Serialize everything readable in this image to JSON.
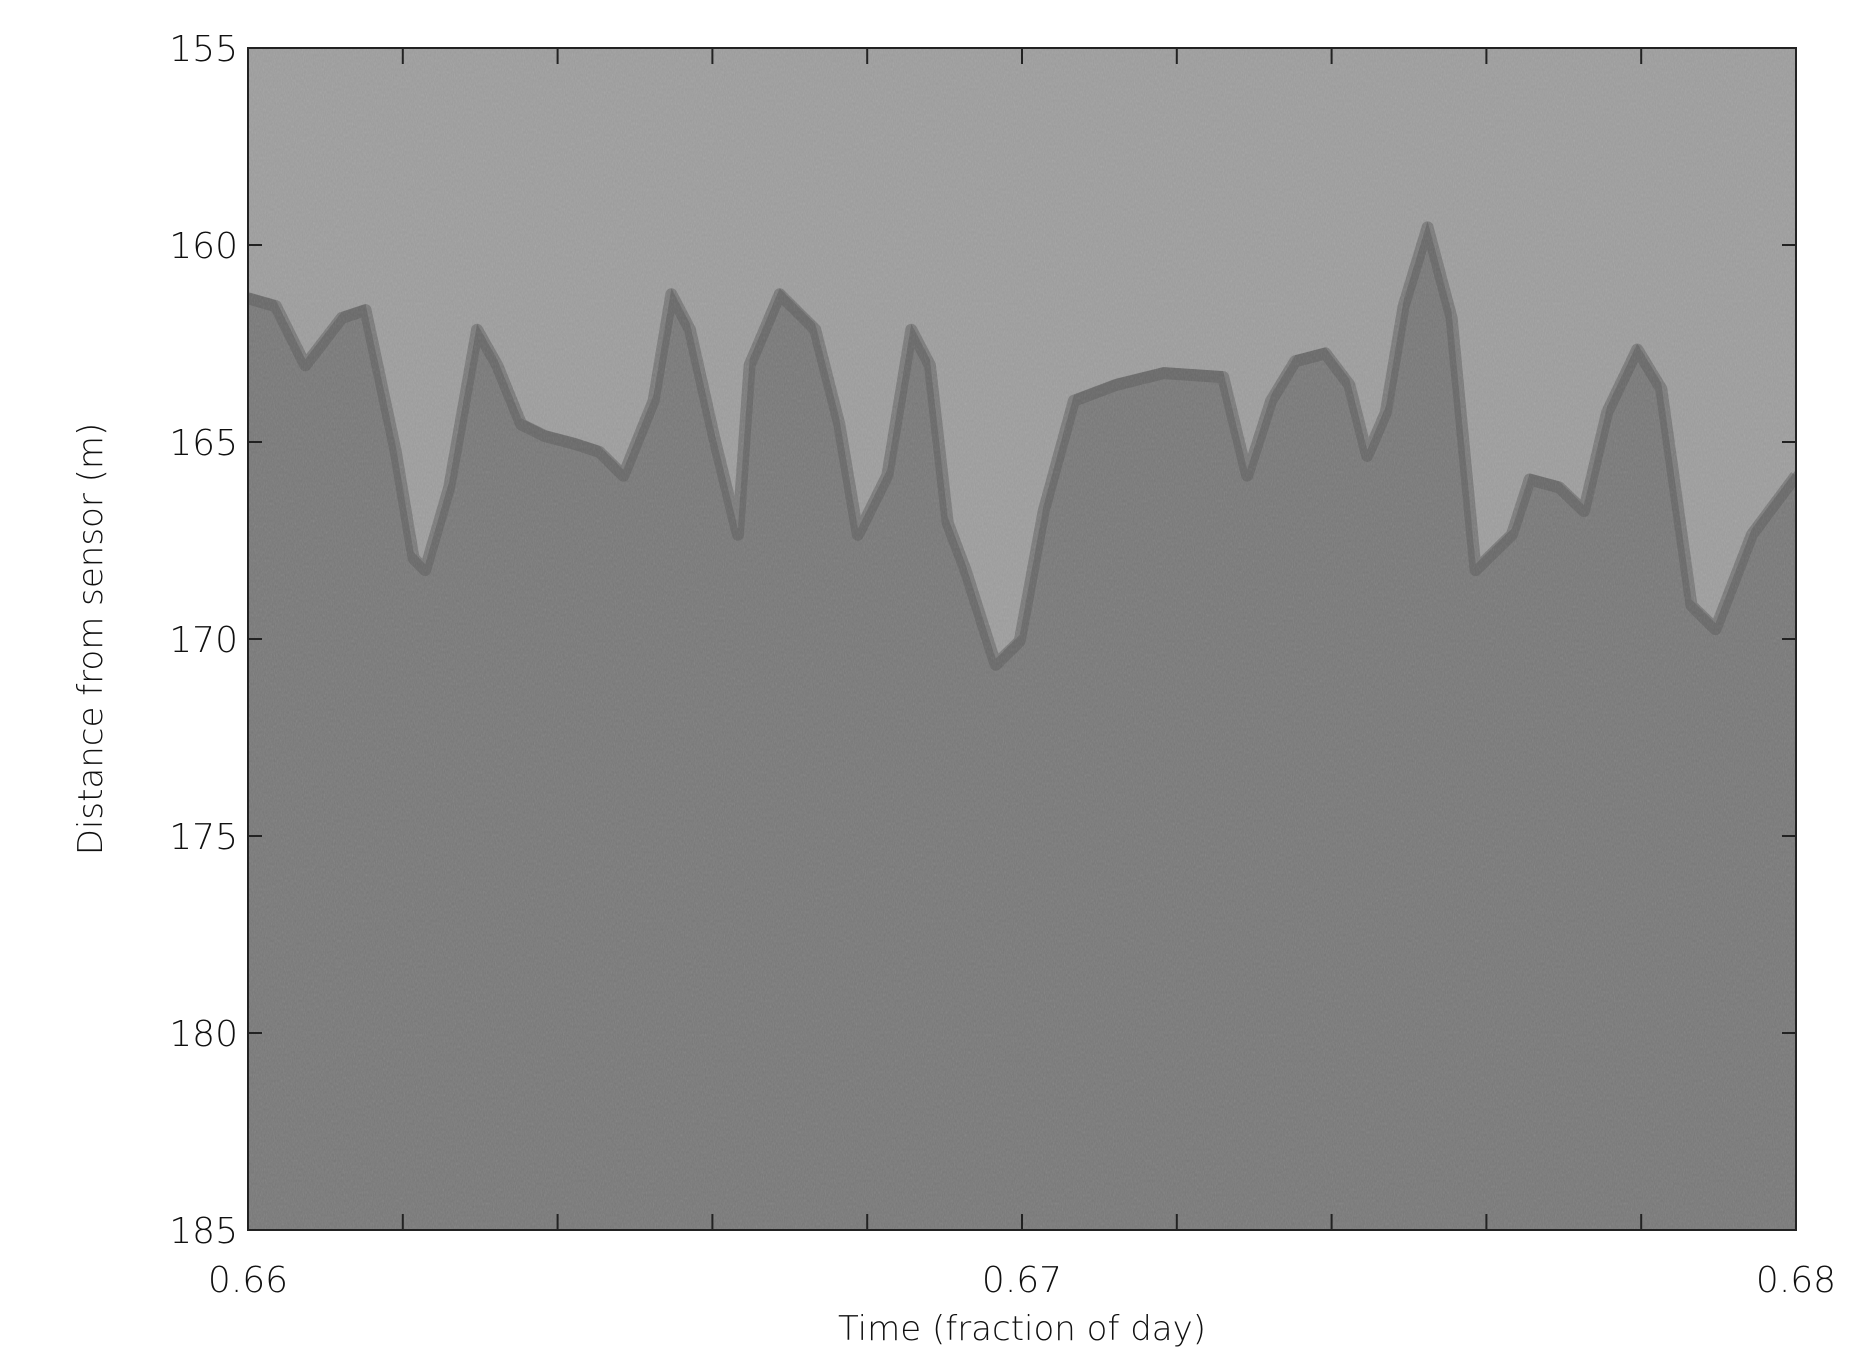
{
  "chart_data": {
    "type": "echogram",
    "xlabel": "Time (fraction of day)",
    "ylabel": "Distance from sensor (m)",
    "xlim": [
      0.66,
      0.68
    ],
    "xticks": [
      0.66,
      0.67,
      0.68
    ],
    "xminorticks": [
      0.662,
      0.664,
      0.666,
      0.668,
      0.672,
      0.674,
      0.676,
      0.678
    ],
    "ylim": [
      185,
      155
    ],
    "yticks": [
      155,
      160,
      165,
      170,
      175,
      180,
      185
    ],
    "background_color": "#9b9b9b",
    "color": "#787878",
    "x": [
      0.66,
      0.66036,
      0.66074,
      0.66121,
      0.66152,
      0.66191,
      0.66214,
      0.66229,
      0.6626,
      0.66296,
      0.66322,
      0.66353,
      0.66384,
      0.66423,
      0.66454,
      0.66485,
      0.66524,
      0.66547,
      0.66571,
      0.66602,
      0.66633,
      0.66648,
      0.66687,
      0.66733,
      0.66764,
      0.66788,
      0.66826,
      0.66857,
      0.66881,
      0.66904,
      0.66927,
      0.66966,
      0.66997,
      0.67028,
      0.67067,
      0.67121,
      0.67183,
      0.6726,
      0.67291,
      0.67322,
      0.67353,
      0.67392,
      0.67423,
      0.67446,
      0.6747,
      0.67493,
      0.67524,
      0.67555,
      0.67586,
      0.67633,
      0.67656,
      0.67694,
      0.67726,
      0.67756,
      0.67795,
      0.67826,
      0.67865,
      0.67896,
      0.67943,
      0.68
    ],
    "values": [
      161.2,
      161.4,
      162.9,
      161.7,
      161.5,
      165.1,
      167.8,
      168.1,
      166.0,
      162.0,
      162.9,
      164.4,
      164.7,
      164.9,
      165.1,
      165.7,
      163.8,
      161.1,
      162.0,
      164.7,
      167.2,
      162.9,
      161.1,
      162.0,
      164.4,
      167.2,
      165.7,
      162.0,
      162.9,
      166.9,
      168.1,
      170.5,
      169.9,
      166.6,
      163.8,
      163.4,
      163.1,
      163.2,
      165.7,
      163.8,
      162.8,
      162.6,
      163.4,
      165.2,
      164.1,
      161.4,
      159.4,
      161.7,
      168.1,
      167.2,
      165.8,
      166.0,
      166.6,
      164.1,
      162.5,
      163.5,
      169.0,
      169.6,
      167.2,
      165.7
    ]
  }
}
